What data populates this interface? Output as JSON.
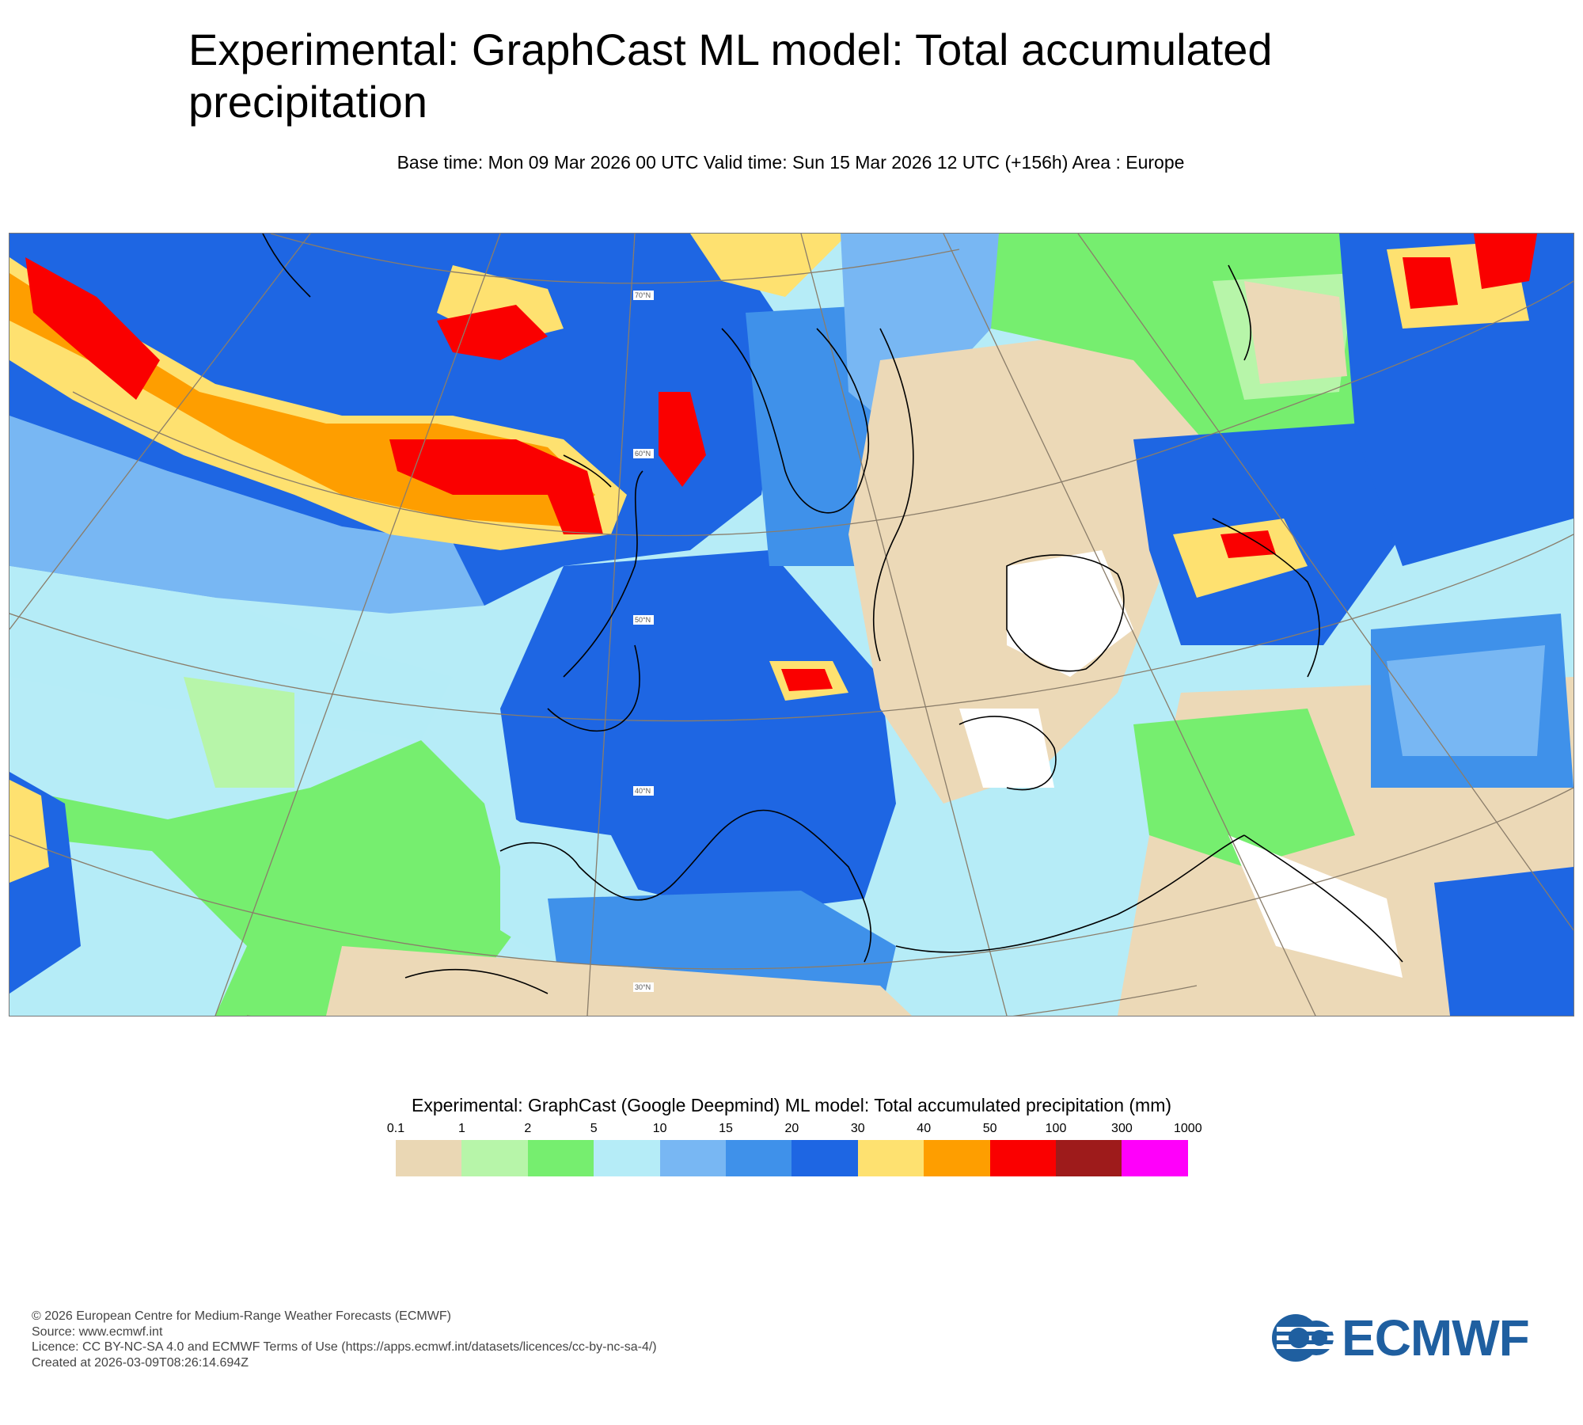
{
  "title": "Experimental: GraphCast ML model: Total accumulated precipitation",
  "subtitle": "Base time: Mon 09 Mar 2026 00 UTC Valid time: Sun 15 Mar 2026 12 UTC (+156h) Area : Europe",
  "map": {
    "lat_labels": [
      "70°N",
      "60°N",
      "50°N",
      "40°N",
      "30°N"
    ],
    "colors": {
      "ocean_light": "#b6ecf7",
      "land_dry": "#ecd9b7",
      "coast": "#000000",
      "graticule": "#8a7d6a"
    }
  },
  "legend": {
    "title": "Experimental: GraphCast (Google Deepmind) ML model: Total accumulated precipitation (mm)",
    "ticks": [
      "0.1",
      "1",
      "2",
      "5",
      "10",
      "15",
      "20",
      "30",
      "40",
      "50",
      "100",
      "300",
      "1000"
    ],
    "colors": [
      "#ead7b4",
      "#b7f5a9",
      "#76ee6f",
      "#b5ecf7",
      "#78b7f3",
      "#3f91ea",
      "#1e66e3",
      "#fee170",
      "#fe9e00",
      "#fa0000",
      "#9e1b1b",
      "#ff00fa"
    ]
  },
  "footer": {
    "line1": "© 2026 European Centre for Medium-Range Weather Forecasts (ECMWF)",
    "line2": "Source: www.ecmwf.int",
    "line3": "Licence: CC BY-NC-SA 4.0 and ECMWF Terms of Use (https://apps.ecmwf.int/datasets/licences/cc-by-nc-sa-4/)",
    "line4": "Created at 2026-03-09T08:26:14.694Z"
  },
  "logo": {
    "text": "ECMWF",
    "color": "#1f5fa0"
  }
}
